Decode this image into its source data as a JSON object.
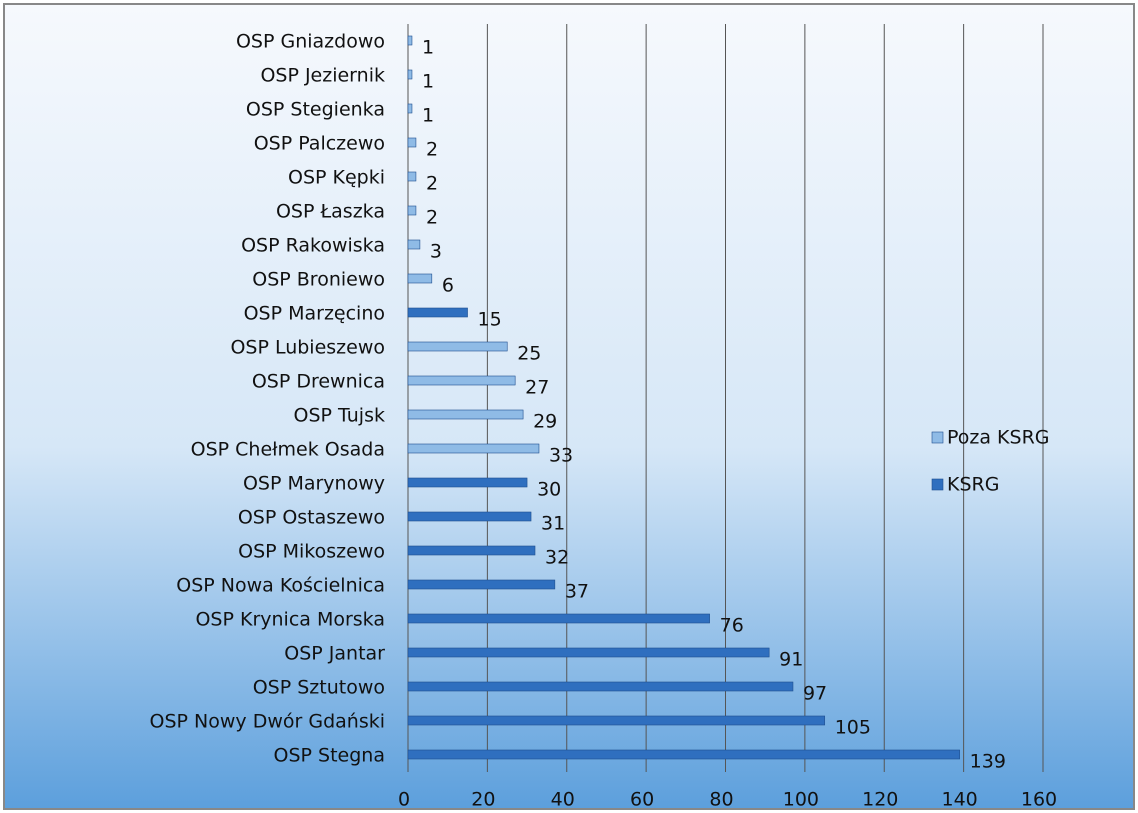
{
  "chart_data": {
    "type": "bar",
    "orientation": "horizontal",
    "categories": [
      "OSP Gniazdowo",
      "OSP Jeziernik",
      "OSP Stegienka",
      "OSP Palczewo",
      "OSP Kępki",
      "OSP Łaszka",
      "OSP Rakowiska",
      "OSP Broniewo",
      "OSP Marzęcino",
      "OSP Lubieszewo",
      "OSP Drewnica",
      "OSP Tujsk",
      "OSP Chełmek Osada",
      "OSP Marynowy",
      "OSP Ostaszewo",
      "OSP Mikoszewo",
      "OSP Nowa Kościelnica",
      "OSP Krynica Morska",
      "OSP Jantar",
      "OSP Sztutowo",
      "OSP Nowy Dwór Gdański",
      "OSP Stegna"
    ],
    "series": [
      {
        "name": "Poza KSRG",
        "color": "#8fbbe6",
        "values": [
          1,
          1,
          1,
          2,
          2,
          2,
          3,
          6,
          null,
          25,
          27,
          29,
          33,
          null,
          null,
          null,
          null,
          null,
          null,
          null,
          null,
          null
        ]
      },
      {
        "name": "KSRG",
        "color": "#2f6fbf",
        "values": [
          null,
          null,
          null,
          null,
          null,
          null,
          null,
          null,
          15,
          null,
          null,
          null,
          null,
          30,
          31,
          32,
          37,
          76,
          91,
          97,
          105,
          139
        ]
      }
    ],
    "xlim": [
      0,
      160
    ],
    "xticks": [
      0,
      20,
      40,
      60,
      80,
      100,
      120,
      140,
      160
    ],
    "grid": true,
    "legend": "right"
  }
}
